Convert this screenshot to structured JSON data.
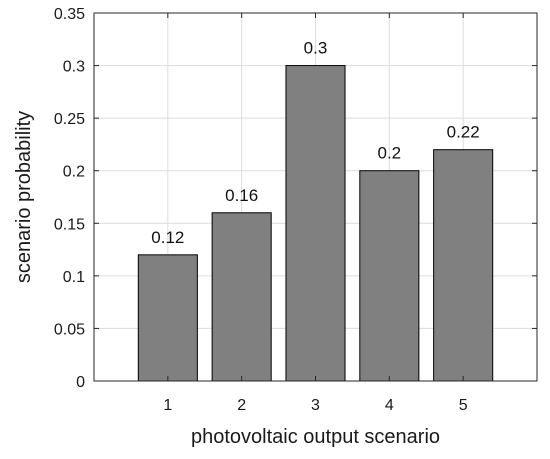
{
  "chart_data": {
    "type": "bar",
    "categories": [
      "1",
      "2",
      "3",
      "4",
      "5"
    ],
    "values": [
      0.12,
      0.16,
      0.3,
      0.2,
      0.22
    ],
    "data_labels": [
      "0.12",
      "0.16",
      "0.3",
      "0.2",
      "0.22"
    ],
    "title": "",
    "xlabel": "photovoltaic output scenario",
    "ylabel": "scenario probability",
    "ylim": [
      0,
      0.35
    ],
    "yticks": [
      0,
      0.05,
      0.1,
      0.15,
      0.2,
      0.25,
      0.3,
      0.35
    ],
    "ytick_labels": [
      "0",
      "0.05",
      "0.1",
      "0.15",
      "0.2",
      "0.25",
      "0.3",
      "0.35"
    ],
    "xlim": [
      0,
      6
    ],
    "grid": true,
    "legend": "none",
    "colors": {
      "bar_fill": "#808080",
      "bar_edge": "#000000",
      "grid": "#dcdcdc",
      "axis": "#262626"
    }
  }
}
